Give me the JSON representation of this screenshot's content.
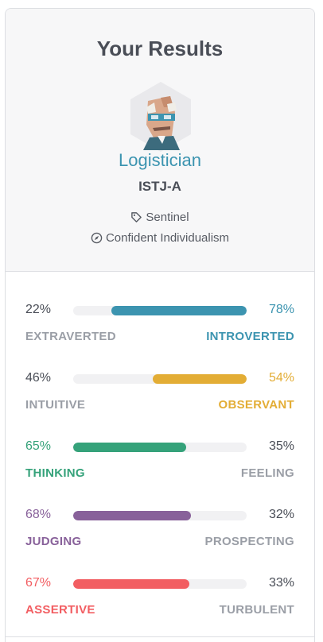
{
  "header": {
    "title": "Your Results",
    "type_name": "Logistician",
    "type_code": "ISTJ-A",
    "role": "Sentinel",
    "strategy": "Confident Individualism",
    "icons": {
      "role": "tag-icon",
      "strategy": "compass-icon",
      "avatar": "logistician-avatar"
    }
  },
  "traits": [
    {
      "left_label": "EXTRAVERTED",
      "left_pct": "22%",
      "right_label": "INTROVERTED",
      "right_pct": "78%",
      "dominant": "right",
      "dominant_fraction": 0.78,
      "color": "#3c94b0"
    },
    {
      "left_label": "INTUITIVE",
      "left_pct": "46%",
      "right_label": "OBSERVANT",
      "right_pct": "54%",
      "dominant": "right",
      "dominant_fraction": 0.54,
      "color": "#e3ad35"
    },
    {
      "left_label": "THINKING",
      "left_pct": "65%",
      "right_label": "FEELING",
      "right_pct": "35%",
      "dominant": "left",
      "dominant_fraction": 0.65,
      "color": "#35a27a"
    },
    {
      "left_label": "JUDGING",
      "left_pct": "68%",
      "right_label": "PROSPECTING",
      "right_pct": "32%",
      "dominant": "left",
      "dominant_fraction": 0.68,
      "color": "#88619a"
    },
    {
      "left_label": "ASSERTIVE",
      "left_pct": "67%",
      "right_label": "TURBULENT",
      "right_pct": "33%",
      "dominant": "left",
      "dominant_fraction": 0.67,
      "color": "#f25e62"
    }
  ],
  "colors": {
    "text": "#4a4e57",
    "muted": "#9a9ea6",
    "track": "#f1f1f3",
    "accent": "#3c94b0"
  }
}
